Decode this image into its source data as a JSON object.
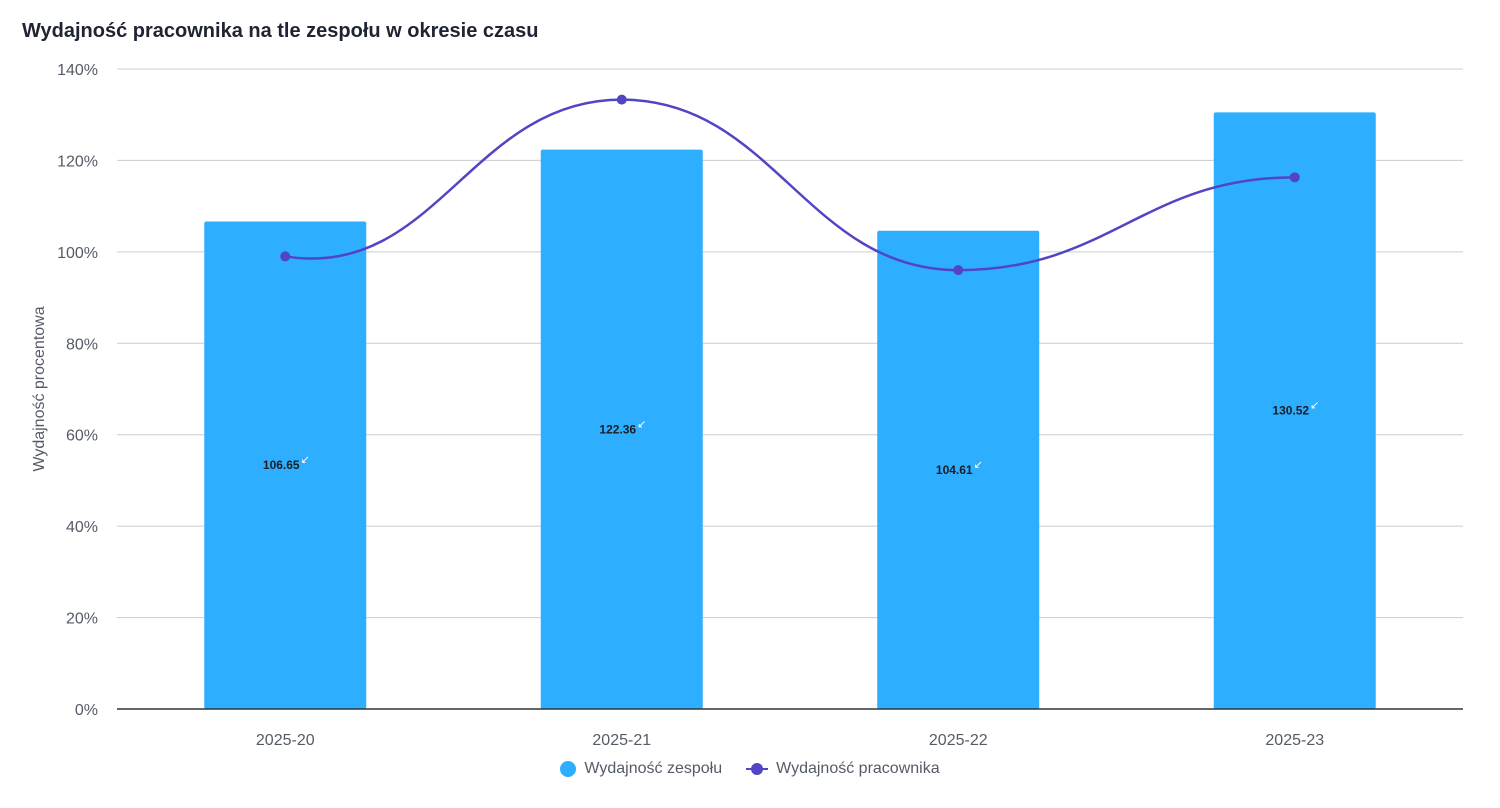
{
  "colors": {
    "bar": "#2eaeff",
    "line": "#5145c4",
    "grid": "#c9ccd3",
    "axis": "#333333"
  },
  "chart_data": {
    "type": "bar",
    "title": "Wydajność pracownika na tle zespołu w okresie czasu",
    "xlabel": "",
    "ylabel": "Wydajność procentowa",
    "ylim": [
      0,
      140
    ],
    "yticks": [
      "0%",
      "20%",
      "40%",
      "60%",
      "80%",
      "100%",
      "120%",
      "140%"
    ],
    "categories": [
      "2025-20",
      "2025-21",
      "2025-22",
      "2025-23"
    ],
    "series": [
      {
        "name": "Wydajność zespołu",
        "type": "bar",
        "values": [
          106.65,
          122.36,
          104.61,
          130.52
        ]
      },
      {
        "name": "Wydajność pracownika",
        "type": "line",
        "values": [
          99,
          133.3,
          96,
          116.3
        ]
      }
    ],
    "bar_labels": [
      "106.65",
      "122.36",
      "104.61",
      "130.52"
    ],
    "label_marker": "↙",
    "grid": true,
    "legend": "bottom-center"
  }
}
